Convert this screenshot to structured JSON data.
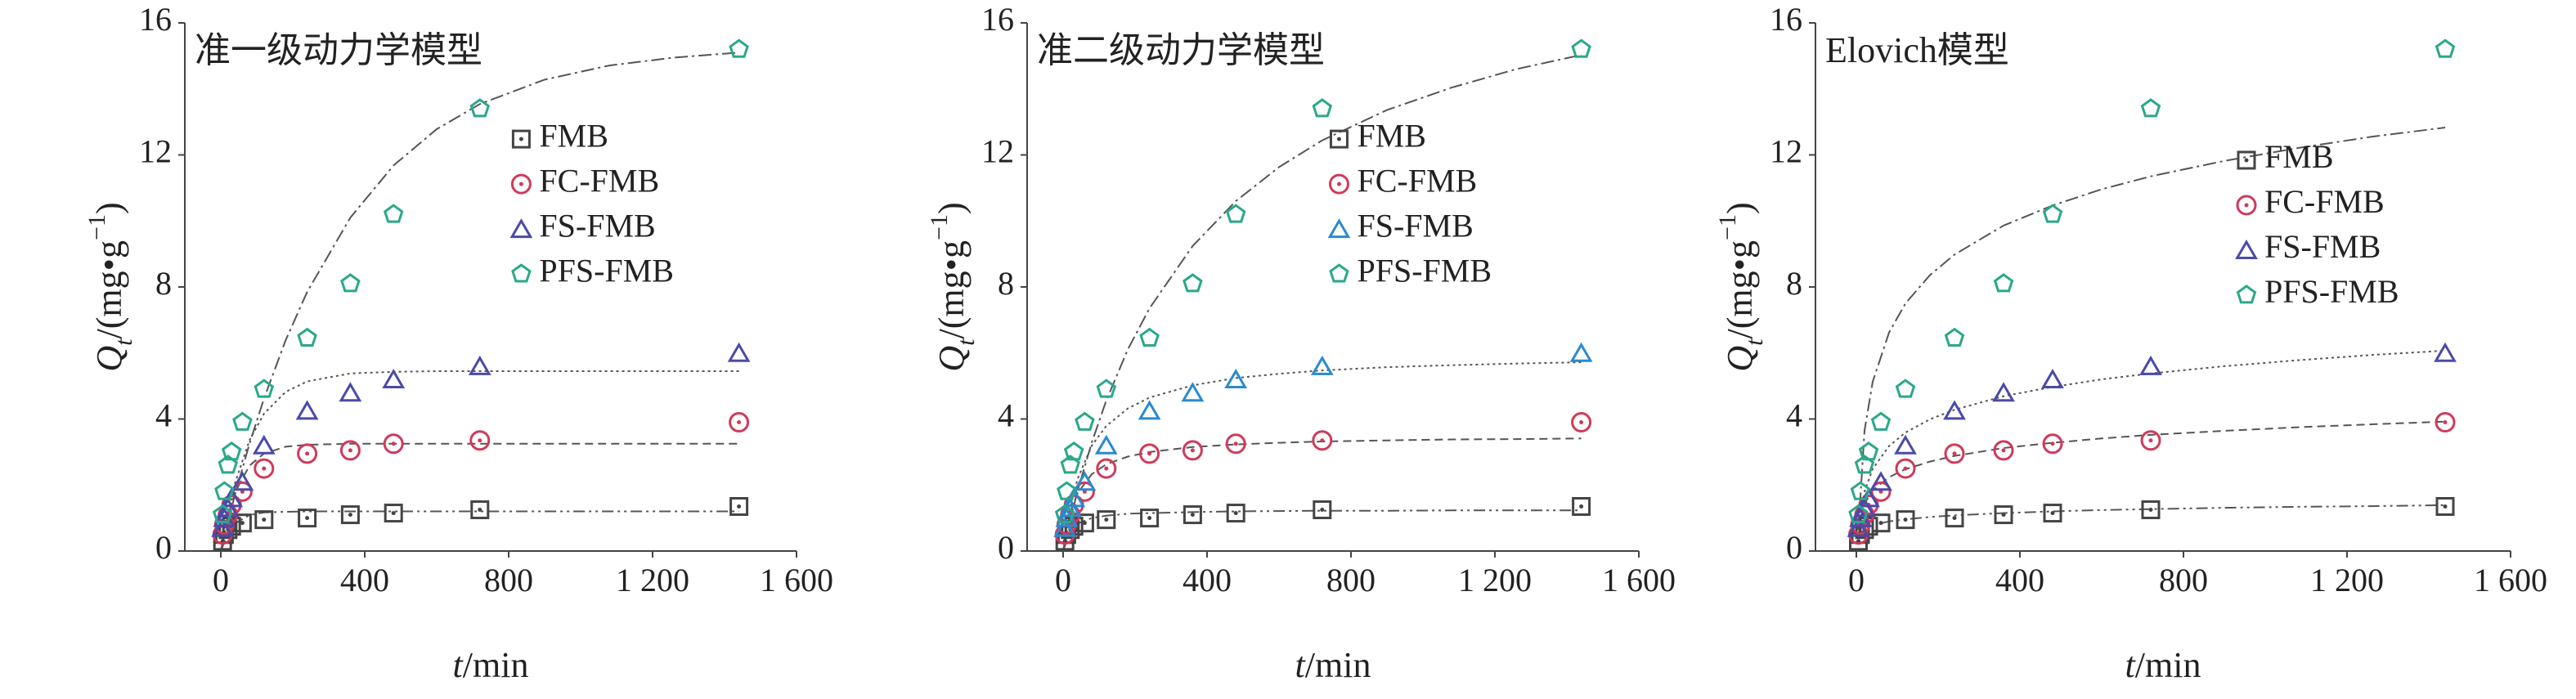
{
  "chart_data": [
    {
      "type": "scatter",
      "title": "准一级动力学模型",
      "xlabel_parts": [
        "t",
        "/min"
      ],
      "ylabel_parts": [
        "Q",
        "t",
        "/(mg•g",
        "−1",
        ")"
      ],
      "xlim": [
        -100,
        1600
      ],
      "ylim": [
        0,
        16
      ],
      "xticks": [
        0,
        400,
        800,
        {
          "value": 1200,
          "label": "1 200"
        },
        {
          "value": 1600,
          "label": "1 600"
        }
      ],
      "yticks": [
        0,
        4,
        8,
        12,
        16
      ],
      "x": [
        5,
        10,
        20,
        30,
        60,
        120,
        240,
        360,
        480,
        720,
        1440
      ],
      "series": [
        {
          "name": "FMB",
          "color": "#444444",
          "marker": "square",
          "values": [
            0.3,
            0.5,
            0.65,
            0.75,
            0.85,
            0.95,
            1.0,
            1.1,
            1.15,
            1.25,
            1.35
          ]
        },
        {
          "name": "FC-FMB",
          "color": "#d03a5a",
          "marker": "circle",
          "values": [
            0.5,
            0.8,
            1.1,
            1.4,
            1.8,
            2.5,
            2.95,
            3.05,
            3.25,
            3.35,
            3.9
          ]
        },
        {
          "name": "FS-FMB",
          "color": "#4a4aaa",
          "marker": "triangle",
          "values": [
            0.7,
            1.0,
            1.3,
            1.6,
            2.1,
            3.2,
            4.25,
            4.8,
            5.2,
            5.6,
            6.0
          ]
        },
        {
          "name": "PFS-FMB",
          "color": "#2aa88a",
          "marker": "pentagon",
          "values": [
            1.1,
            1.8,
            2.6,
            3.0,
            3.9,
            4.9,
            6.45,
            8.1,
            10.2,
            13.4,
            15.2
          ]
        }
      ],
      "fit_x": [
        0,
        20,
        40,
        80,
        120,
        180,
        240,
        360,
        480,
        600,
        720,
        900,
        1080,
        1260,
        1440
      ],
      "fits": [
        {
          "color": "#555555",
          "dash": "14 5 3 5 3 5",
          "values": [
            0,
            0.54,
            0.84,
            1.09,
            1.17,
            1.19,
            1.2,
            1.2,
            1.2,
            1.2,
            1.2,
            1.2,
            1.2,
            1.2,
            1.2
          ]
        },
        {
          "color": "#555555",
          "dash": "10 6",
          "values": [
            0,
            1.07,
            1.79,
            2.59,
            2.95,
            3.16,
            3.22,
            3.25,
            3.25,
            3.25,
            3.25,
            3.25,
            3.25,
            3.25,
            3.25
          ]
        },
        {
          "color": "#555555",
          "dash": "3 4",
          "values": [
            0,
            1.16,
            2.08,
            3.36,
            4.16,
            4.82,
            5.14,
            5.38,
            5.43,
            5.45,
            5.45,
            5.45,
            5.45,
            5.45,
            5.45
          ]
        },
        {
          "color": "#555555",
          "dash": "16 5 3 5",
          "values": [
            0,
            0.89,
            1.73,
            3.26,
            4.62,
            6.38,
            7.85,
            10.1,
            11.68,
            12.78,
            13.54,
            14.28,
            14.71,
            14.95,
            15.1
          ]
        }
      ]
    },
    {
      "type": "scatter",
      "title": "准二级动力学模型",
      "xlabel_parts": [
        "t",
        "/min"
      ],
      "ylabel_parts": [
        "Q",
        "t",
        "/(mg•g",
        "−1",
        ")"
      ],
      "xlim": [
        -100,
        1600
      ],
      "ylim": [
        0,
        16
      ],
      "xticks": [
        0,
        400,
        800,
        {
          "value": 1200,
          "label": "1 200"
        },
        {
          "value": 1600,
          "label": "1 600"
        }
      ],
      "yticks": [
        0,
        4,
        8,
        12,
        16
      ],
      "x": [
        5,
        10,
        20,
        30,
        60,
        120,
        240,
        360,
        480,
        720,
        1440
      ],
      "series": [
        {
          "name": "FMB",
          "color": "#444444",
          "marker": "square",
          "values": [
            0.3,
            0.5,
            0.65,
            0.75,
            0.85,
            0.95,
            1.0,
            1.1,
            1.15,
            1.25,
            1.35
          ]
        },
        {
          "name": "FC-FMB",
          "color": "#d03a5a",
          "marker": "circle",
          "values": [
            0.5,
            0.8,
            1.1,
            1.4,
            1.8,
            2.5,
            2.95,
            3.05,
            3.25,
            3.35,
            3.9
          ]
        },
        {
          "name": "FS-FMB",
          "color": "#2a8ad0",
          "marker": "triangle",
          "values": [
            0.7,
            1.0,
            1.3,
            1.6,
            2.1,
            3.2,
            4.25,
            4.8,
            5.2,
            5.6,
            6.0
          ]
        },
        {
          "name": "PFS-FMB",
          "color": "#2aa88a",
          "marker": "pentagon",
          "values": [
            1.1,
            1.8,
            2.6,
            3.0,
            3.9,
            4.9,
            6.45,
            8.1,
            10.2,
            13.4,
            15.2
          ]
        }
      ],
      "fit_x": [
        0,
        20,
        40,
        80,
        120,
        180,
        240,
        360,
        480,
        600,
        720,
        900,
        1080,
        1260,
        1440
      ],
      "fits": [
        {
          "color": "#555555",
          "dash": "14 5 3 5 3 5",
          "values": [
            0,
            0.63,
            0.83,
            1.0,
            1.07,
            1.13,
            1.15,
            1.18,
            1.2,
            1.21,
            1.22,
            1.22,
            1.23,
            1.23,
            1.23
          ]
        },
        {
          "color": "#555555",
          "dash": "10 6",
          "values": [
            0,
            1.17,
            1.75,
            2.33,
            2.63,
            2.86,
            3.0,
            3.15,
            3.23,
            3.28,
            3.32,
            3.35,
            3.38,
            3.39,
            3.41
          ]
        },
        {
          "color": "#555555",
          "dash": "3 4",
          "values": [
            0,
            1.33,
            2.18,
            3.2,
            3.79,
            4.32,
            4.65,
            5.02,
            5.24,
            5.37,
            5.47,
            5.57,
            5.63,
            5.68,
            5.72
          ]
        },
        {
          "color": "#555555",
          "dash": "16 5 3 5",
          "values": [
            0,
            0.95,
            1.81,
            3.3,
            4.56,
            6.11,
            7.35,
            9.24,
            10.6,
            11.63,
            12.44,
            13.36,
            14.04,
            14.6,
            15.03
          ]
        }
      ]
    },
    {
      "type": "scatter",
      "title": "Elovich模型",
      "xlabel_parts": [
        "t",
        "/min"
      ],
      "ylabel_parts": [
        "Q",
        "t",
        "/(mg•g",
        "−1",
        ")"
      ],
      "xlim": [
        -100,
        1600
      ],
      "ylim": [
        0,
        16
      ],
      "xticks": [
        0,
        400,
        800,
        {
          "value": 1200,
          "label": "1 200"
        },
        {
          "value": 1600,
          "label": "1 600"
        }
      ],
      "yticks": [
        0,
        4,
        8,
        12,
        16
      ],
      "x": [
        5,
        10,
        20,
        30,
        60,
        120,
        240,
        360,
        480,
        720,
        1440
      ],
      "series": [
        {
          "name": "FMB",
          "color": "#444444",
          "marker": "square",
          "values": [
            0.3,
            0.5,
            0.65,
            0.75,
            0.85,
            0.95,
            1.0,
            1.1,
            1.15,
            1.25,
            1.35
          ]
        },
        {
          "name": "FC-FMB",
          "color": "#d03a5a",
          "marker": "circle",
          "values": [
            0.5,
            0.8,
            1.1,
            1.4,
            1.8,
            2.5,
            2.95,
            3.05,
            3.25,
            3.35,
            3.9
          ]
        },
        {
          "name": "FS-FMB",
          "color": "#4a4aaa",
          "marker": "triangle",
          "values": [
            0.7,
            1.0,
            1.3,
            1.6,
            2.1,
            3.2,
            4.25,
            4.8,
            5.2,
            5.6,
            6.0
          ]
        },
        {
          "name": "PFS-FMB",
          "color": "#2aa88a",
          "marker": "pentagon",
          "values": [
            1.1,
            1.8,
            2.6,
            3.0,
            3.9,
            4.9,
            6.45,
            8.1,
            10.2,
            13.4,
            15.2
          ]
        }
      ],
      "fit_x": [
        5,
        20,
        40,
        80,
        120,
        180,
        240,
        360,
        480,
        600,
        720,
        900,
        1080,
        1260,
        1440
      ],
      "fits": [
        {
          "color": "#555555",
          "dash": "14 5 3 5 3 5",
          "values": [
            0.42,
            0.66,
            0.78,
            0.9,
            0.96,
            1.03,
            1.08,
            1.15,
            1.2,
            1.24,
            1.27,
            1.31,
            1.34,
            1.36,
            1.39
          ]
        },
        {
          "color": "#555555",
          "dash": "10 6",
          "values": [
            0.63,
            1.44,
            1.84,
            2.24,
            2.48,
            2.71,
            2.88,
            3.12,
            3.28,
            3.41,
            3.52,
            3.64,
            3.75,
            3.84,
            3.92
          ]
        },
        {
          "color": "#555555",
          "dash": "3 4",
          "values": [
            0.41,
            1.8,
            2.49,
            3.18,
            3.59,
            3.99,
            4.28,
            4.69,
            4.97,
            5.2,
            5.38,
            5.6,
            5.78,
            5.94,
            6.07
          ]
        },
        {
          "color": "#555555",
          "dash": "16 5 3 5",
          "values": [
            0.66,
            3.65,
            5.13,
            6.62,
            7.5,
            8.36,
            8.98,
            9.86,
            10.47,
            10.96,
            11.35,
            11.82,
            12.21,
            12.55,
            12.83
          ]
        }
      ]
    }
  ]
}
